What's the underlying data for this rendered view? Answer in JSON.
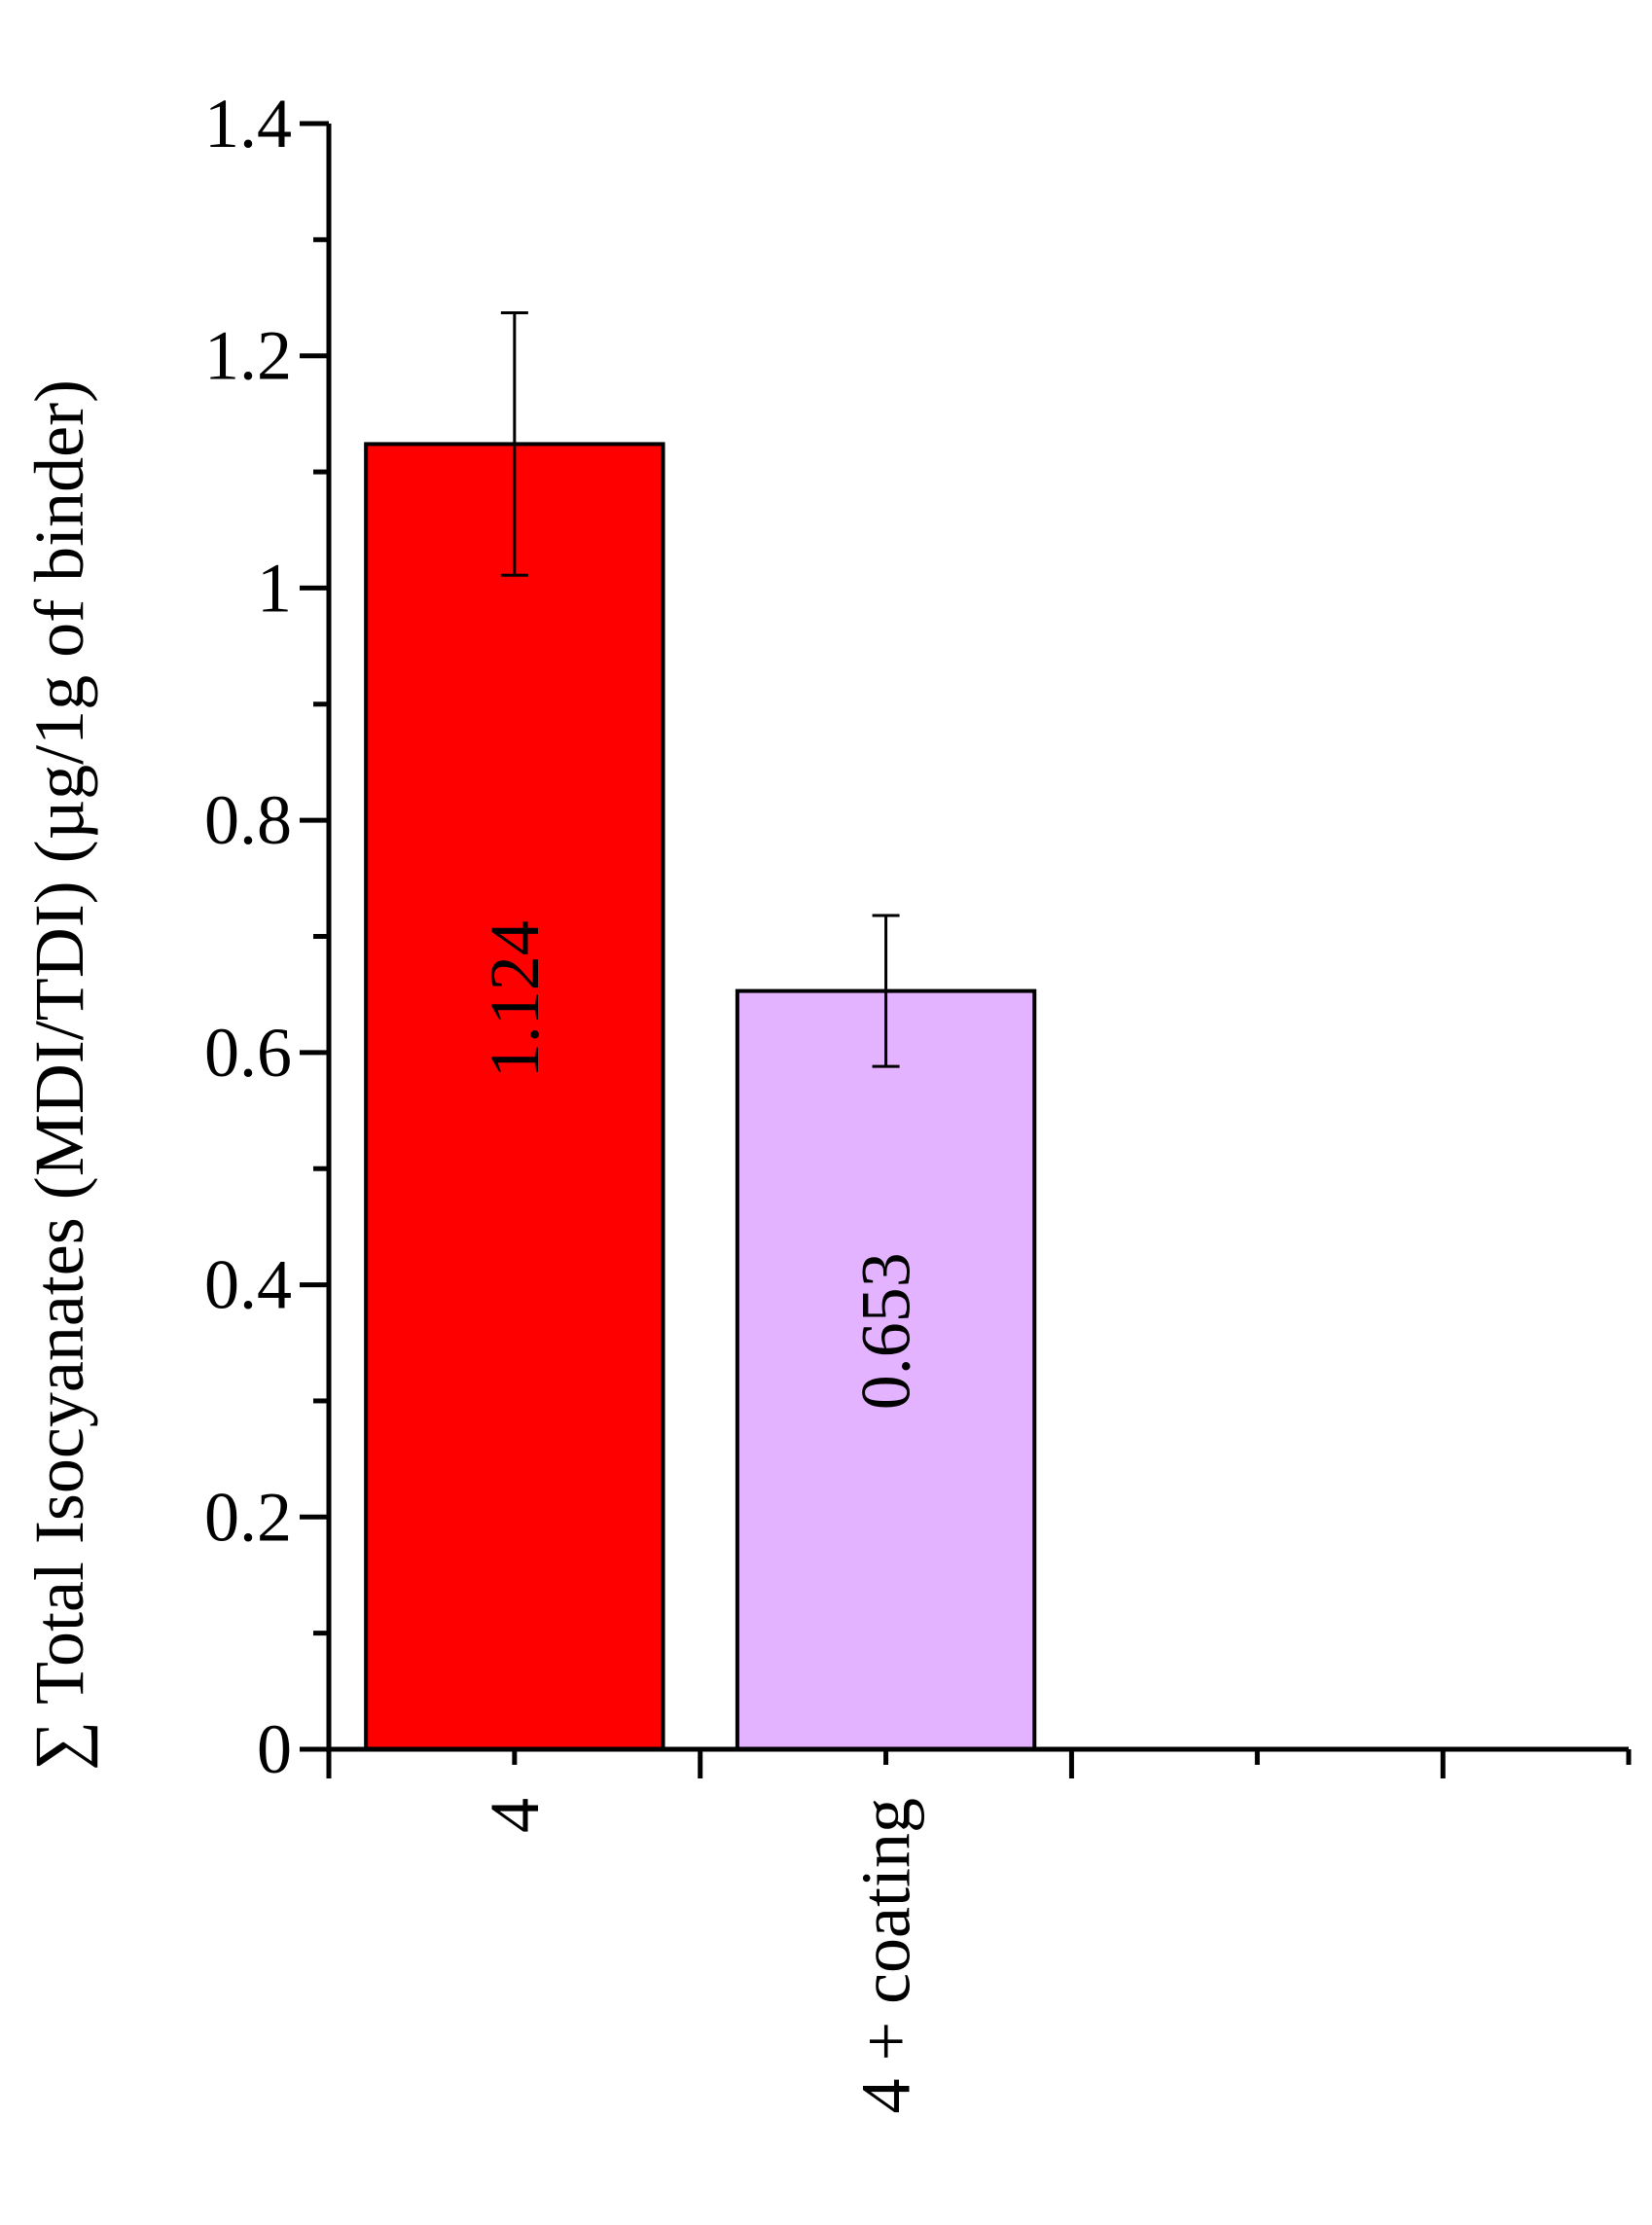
{
  "chart_data": {
    "type": "bar",
    "categories": [
      "4",
      "4 + coating"
    ],
    "values": [
      1.124,
      0.653
    ],
    "errors": [
      0.113,
      0.065
    ],
    "data_labels": [
      "1.124",
      "0.653"
    ],
    "colors": [
      "#ff0000",
      "#e4b3ff"
    ],
    "title": "",
    "xlabel": "",
    "ylabel": "∑ Total Isocyanates (MDI/TDI) (µg/1g of binder)",
    "ylim": [
      0,
      1.4
    ],
    "yticks": [
      0,
      0.2,
      0.4,
      0.6,
      0.8,
      1,
      1.2,
      1.4
    ],
    "ytick_labels": [
      "0",
      "0.2",
      "0.4",
      "0.6",
      "0.8",
      "1",
      "1.2",
      "1.4"
    ],
    "x_slots": 7,
    "grid": false,
    "legend": "none"
  }
}
